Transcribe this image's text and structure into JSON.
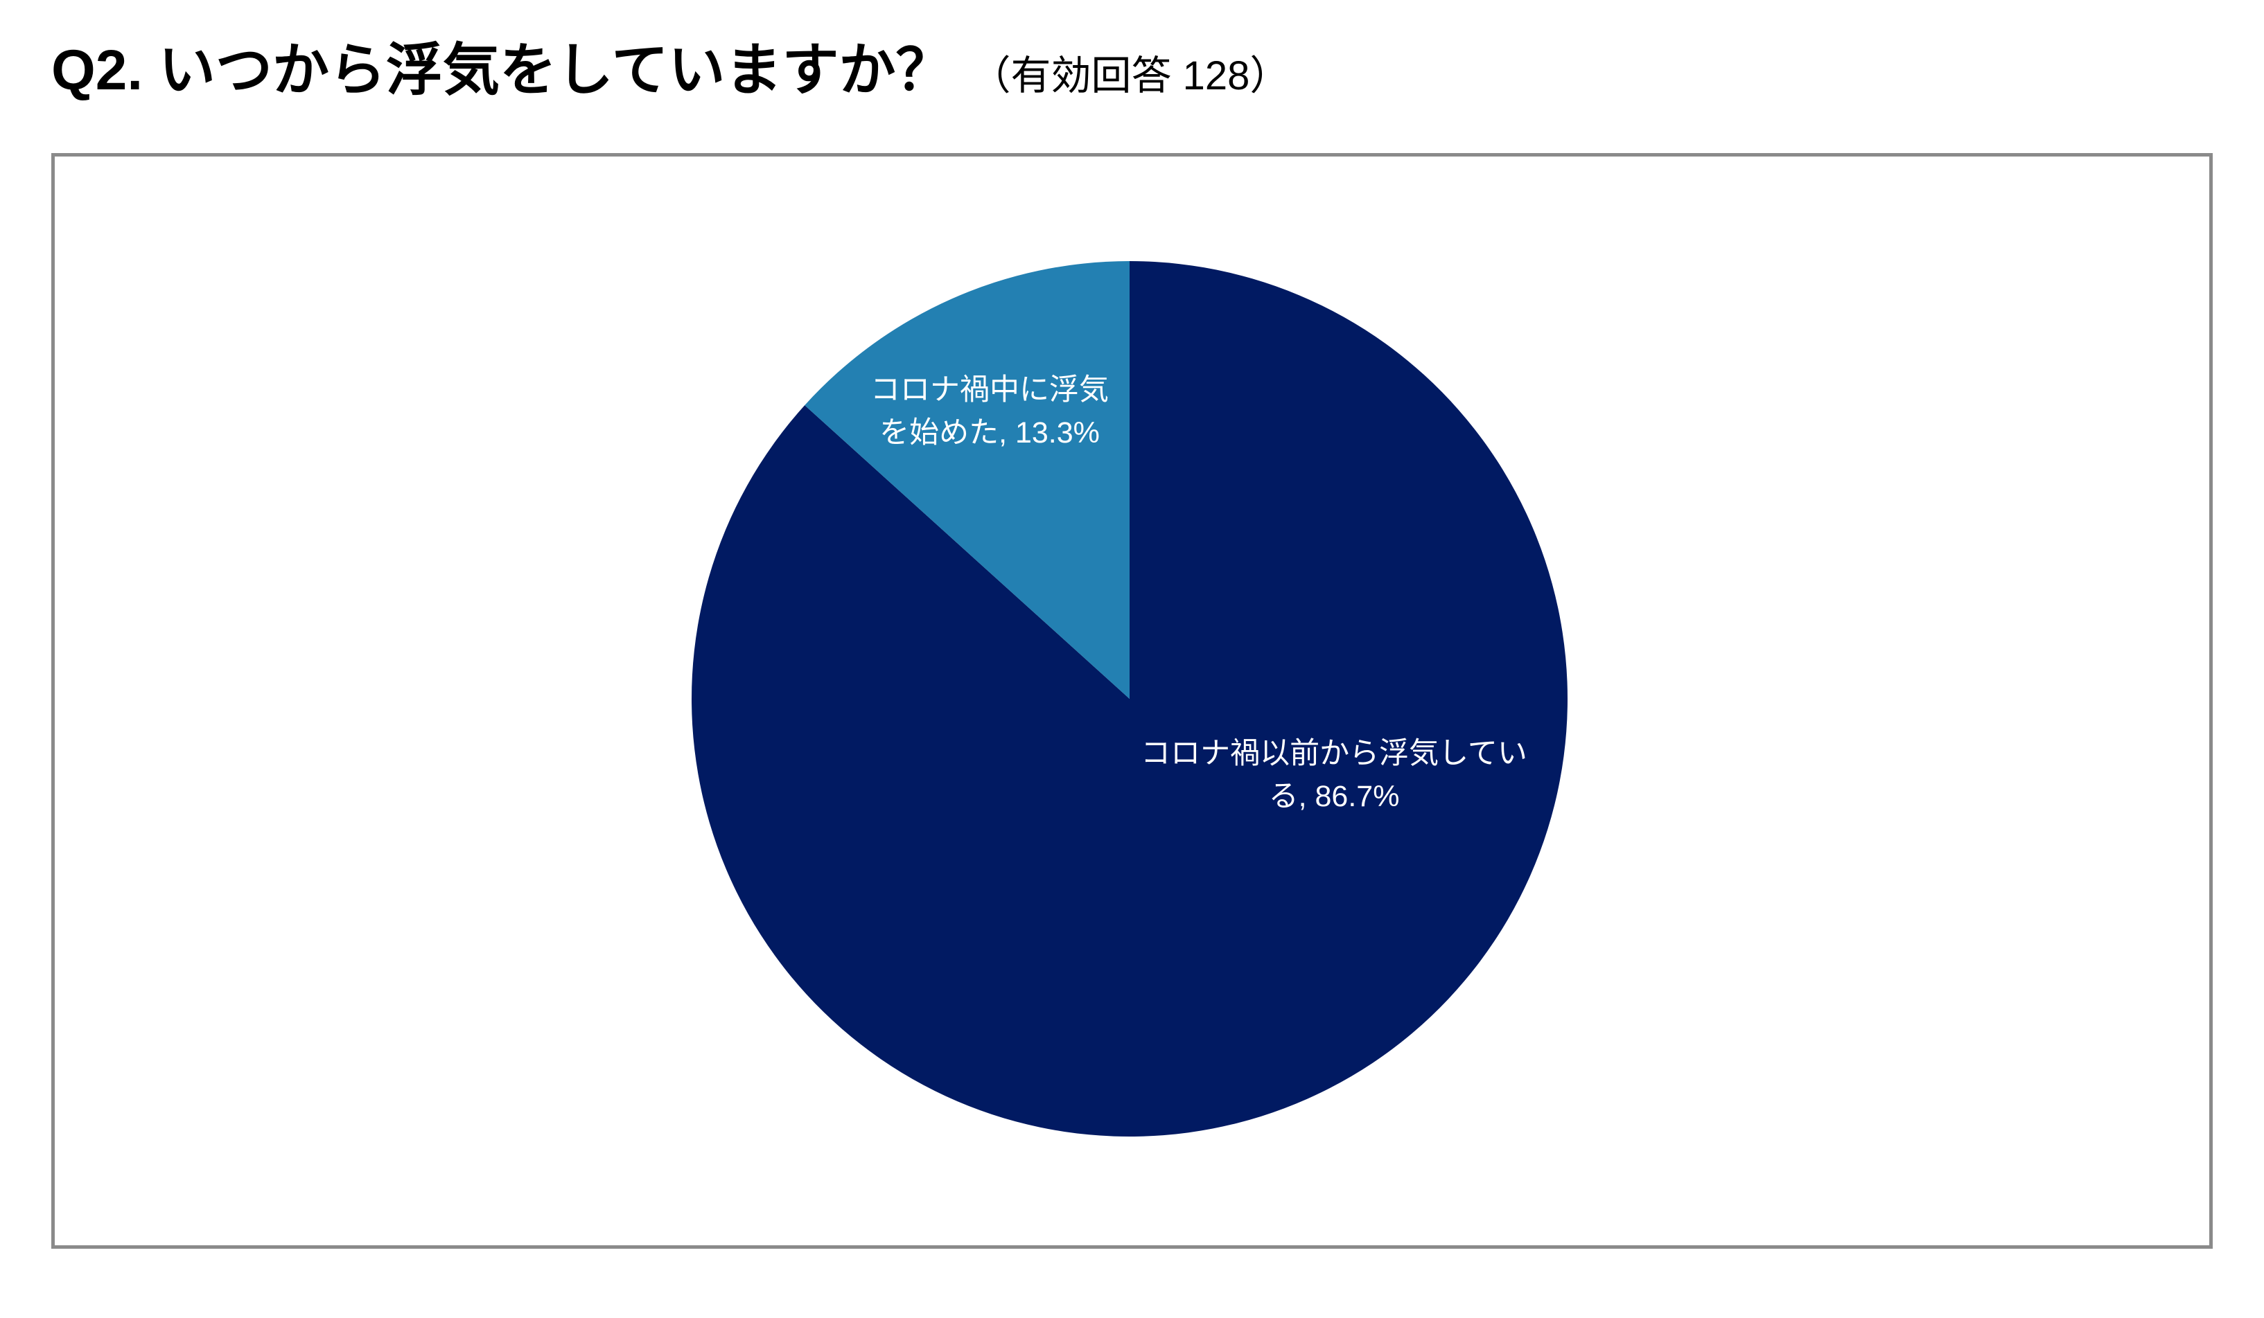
{
  "title": {
    "question": "Q2. いつから浮気をしていますか？",
    "note": "（有効回答 128）"
  },
  "chart_data": {
    "type": "pie",
    "categories": [
      "コロナ禍以前から浮気している",
      "コロナ禍中に浮気を始めた"
    ],
    "values": [
      86.7,
      13.3
    ],
    "label_separator": ", ",
    "label_suffix": "%",
    "colors": [
      "#011A62",
      "#2380B2"
    ],
    "start_angle_deg": 0,
    "clockwise": true
  }
}
